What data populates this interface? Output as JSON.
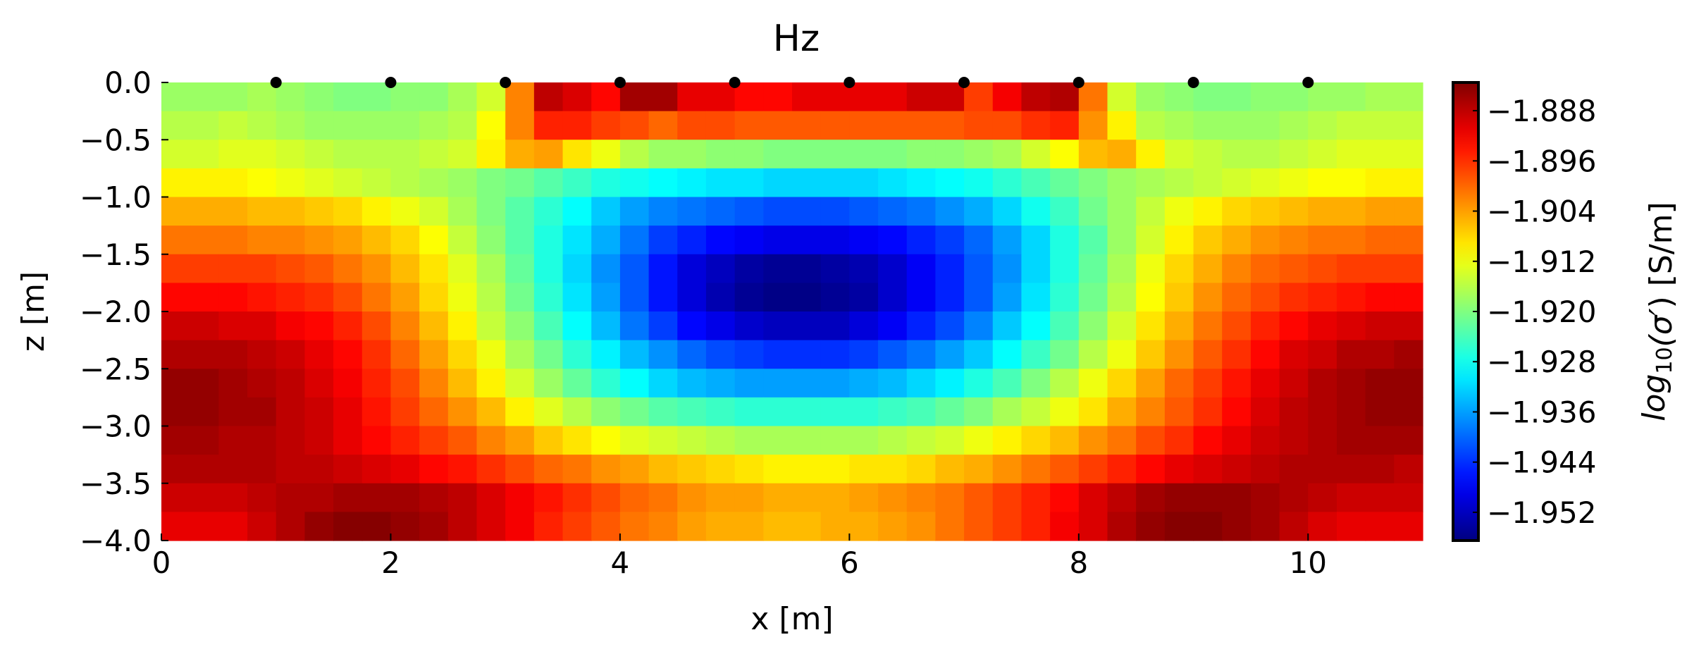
{
  "chart_data": {
    "type": "heatmap",
    "title": "Hz",
    "xlabel": "x [m]",
    "ylabel": "z [m]",
    "xlim": [
      0,
      11
    ],
    "ylim": [
      -4,
      0
    ],
    "x_ticks": [
      0,
      2,
      4,
      6,
      8,
      10
    ],
    "y_ticks": [
      0.0,
      -0.5,
      -1.0,
      -1.5,
      -2.0,
      -2.5,
      -3.0,
      -3.5,
      -4.0
    ],
    "x_tick_labels": [
      "0",
      "2",
      "4",
      "6",
      "8",
      "10"
    ],
    "y_tick_labels": [
      "0.0",
      "−0.5",
      "−1.0",
      "−1.5",
      "−2.0",
      "−2.5",
      "−3.0",
      "−3.5",
      "−4.0"
    ],
    "grid": false,
    "colormap": "jet",
    "colorbar": {
      "label": "log10(σ') [S/m]",
      "min": -1.9565,
      "max": -1.8835,
      "ticks": [
        -1.888,
        -1.896,
        -1.904,
        -1.912,
        -1.92,
        -1.928,
        -1.936,
        -1.944,
        -1.952
      ],
      "tick_labels": [
        "−1.888",
        "−1.896",
        "−1.904",
        "−1.912",
        "−1.920",
        "−1.928",
        "−1.936",
        "−1.944",
        "−1.952"
      ]
    },
    "cell_size": [
      0.25,
      0.25
    ],
    "z_top_cells": [
      0,
      -0.25,
      -0.5,
      -0.75,
      -1.0,
      -1.25,
      -1.5,
      -1.75,
      -2.0,
      -2.25,
      -2.5,
      -2.75,
      -3.0,
      -3.25,
      -3.5,
      -3.75
    ],
    "values": [
      [
        -1.918,
        -1.918,
        -1.918,
        -1.917,
        -1.918,
        -1.919,
        -1.92,
        -1.92,
        -1.919,
        -1.919,
        -1.917,
        -1.914,
        -1.902,
        -1.888,
        -1.89,
        -1.893,
        -1.886,
        -1.886,
        -1.891,
        -1.891,
        -1.893,
        -1.893,
        -1.891,
        -1.891,
        -1.891,
        -1.891,
        -1.889,
        -1.889,
        -1.897,
        -1.892,
        -1.888,
        -1.887,
        -1.901,
        -1.914,
        -1.918,
        -1.919,
        -1.92,
        -1.92,
        -1.919,
        -1.919,
        -1.918,
        -1.918,
        -1.917,
        -1.917
      ],
      [
        -1.916,
        -1.916,
        -1.915,
        -1.916,
        -1.917,
        -1.918,
        -1.918,
        -1.918,
        -1.918,
        -1.917,
        -1.916,
        -1.911,
        -1.902,
        -1.895,
        -1.895,
        -1.897,
        -1.898,
        -1.9,
        -1.898,
        -1.898,
        -1.899,
        -1.899,
        -1.899,
        -1.899,
        -1.899,
        -1.899,
        -1.899,
        -1.899,
        -1.898,
        -1.898,
        -1.896,
        -1.895,
        -1.903,
        -1.91,
        -1.916,
        -1.917,
        -1.918,
        -1.918,
        -1.918,
        -1.917,
        -1.916,
        -1.915,
        -1.915,
        -1.915
      ],
      [
        -1.914,
        -1.914,
        -1.913,
        -1.913,
        -1.914,
        -1.915,
        -1.916,
        -1.916,
        -1.916,
        -1.915,
        -1.914,
        -1.91,
        -1.905,
        -1.904,
        -1.909,
        -1.912,
        -1.916,
        -1.918,
        -1.918,
        -1.919,
        -1.919,
        -1.92,
        -1.92,
        -1.92,
        -1.92,
        -1.92,
        -1.919,
        -1.919,
        -1.918,
        -1.917,
        -1.914,
        -1.911,
        -1.906,
        -1.905,
        -1.91,
        -1.914,
        -1.915,
        -1.916,
        -1.916,
        -1.915,
        -1.914,
        -1.913,
        -1.913,
        -1.913
      ],
      [
        -1.91,
        -1.91,
        -1.91,
        -1.911,
        -1.912,
        -1.913,
        -1.914,
        -1.915,
        -1.916,
        -1.917,
        -1.918,
        -1.92,
        -1.921,
        -1.923,
        -1.925,
        -1.927,
        -1.928,
        -1.929,
        -1.93,
        -1.931,
        -1.931,
        -1.932,
        -1.932,
        -1.932,
        -1.932,
        -1.931,
        -1.93,
        -1.929,
        -1.928,
        -1.926,
        -1.924,
        -1.922,
        -1.92,
        -1.918,
        -1.917,
        -1.916,
        -1.915,
        -1.914,
        -1.913,
        -1.912,
        -1.911,
        -1.911,
        -1.91,
        -1.91
      ],
      [
        -1.905,
        -1.905,
        -1.905,
        -1.906,
        -1.906,
        -1.907,
        -1.908,
        -1.91,
        -1.912,
        -1.914,
        -1.917,
        -1.92,
        -1.923,
        -1.926,
        -1.929,
        -1.933,
        -1.936,
        -1.938,
        -1.939,
        -1.94,
        -1.941,
        -1.942,
        -1.942,
        -1.942,
        -1.941,
        -1.94,
        -1.939,
        -1.937,
        -1.935,
        -1.932,
        -1.928,
        -1.925,
        -1.921,
        -1.918,
        -1.915,
        -1.912,
        -1.91,
        -1.908,
        -1.907,
        -1.906,
        -1.905,
        -1.905,
        -1.904,
        -1.904
      ],
      [
        -1.901,
        -1.901,
        -1.901,
        -1.902,
        -1.902,
        -1.903,
        -1.904,
        -1.906,
        -1.908,
        -1.911,
        -1.915,
        -1.919,
        -1.923,
        -1.927,
        -1.931,
        -1.935,
        -1.939,
        -1.943,
        -1.945,
        -1.947,
        -1.948,
        -1.949,
        -1.949,
        -1.949,
        -1.948,
        -1.947,
        -1.945,
        -1.943,
        -1.94,
        -1.936,
        -1.932,
        -1.927,
        -1.923,
        -1.918,
        -1.914,
        -1.91,
        -1.907,
        -1.905,
        -1.903,
        -1.902,
        -1.901,
        -1.901,
        -1.9,
        -1.9
      ],
      [
        -1.897,
        -1.897,
        -1.897,
        -1.897,
        -1.898,
        -1.899,
        -1.901,
        -1.903,
        -1.906,
        -1.909,
        -1.913,
        -1.917,
        -1.922,
        -1.927,
        -1.932,
        -1.937,
        -1.941,
        -1.946,
        -1.95,
        -1.952,
        -1.954,
        -1.955,
        -1.955,
        -1.954,
        -1.953,
        -1.951,
        -1.948,
        -1.945,
        -1.941,
        -1.937,
        -1.932,
        -1.927,
        -1.922,
        -1.917,
        -1.912,
        -1.908,
        -1.905,
        -1.902,
        -1.9,
        -1.899,
        -1.898,
        -1.897,
        -1.897,
        -1.897
      ],
      [
        -1.893,
        -1.893,
        -1.893,
        -1.894,
        -1.895,
        -1.896,
        -1.898,
        -1.901,
        -1.904,
        -1.908,
        -1.912,
        -1.916,
        -1.921,
        -1.926,
        -1.931,
        -1.936,
        -1.941,
        -1.946,
        -1.95,
        -1.953,
        -1.955,
        -1.956,
        -1.956,
        -1.955,
        -1.954,
        -1.951,
        -1.948,
        -1.945,
        -1.941,
        -1.936,
        -1.931,
        -1.926,
        -1.921,
        -1.916,
        -1.911,
        -1.907,
        -1.903,
        -1.9,
        -1.898,
        -1.896,
        -1.895,
        -1.894,
        -1.893,
        -1.893
      ],
      [
        -1.889,
        -1.889,
        -1.89,
        -1.89,
        -1.892,
        -1.893,
        -1.895,
        -1.898,
        -1.902,
        -1.906,
        -1.91,
        -1.915,
        -1.919,
        -1.924,
        -1.929,
        -1.934,
        -1.939,
        -1.943,
        -1.947,
        -1.949,
        -1.951,
        -1.952,
        -1.952,
        -1.952,
        -1.95,
        -1.948,
        -1.945,
        -1.942,
        -1.938,
        -1.933,
        -1.929,
        -1.924,
        -1.919,
        -1.914,
        -1.909,
        -1.905,
        -1.901,
        -1.898,
        -1.895,
        -1.893,
        -1.891,
        -1.89,
        -1.889,
        -1.889
      ],
      [
        -1.887,
        -1.887,
        -1.887,
        -1.888,
        -1.889,
        -1.891,
        -1.893,
        -1.896,
        -1.9,
        -1.904,
        -1.908,
        -1.912,
        -1.917,
        -1.921,
        -1.926,
        -1.93,
        -1.934,
        -1.937,
        -1.94,
        -1.942,
        -1.943,
        -1.944,
        -1.944,
        -1.944,
        -1.943,
        -1.941,
        -1.939,
        -1.936,
        -1.933,
        -1.929,
        -1.925,
        -1.921,
        -1.916,
        -1.912,
        -1.907,
        -1.903,
        -1.899,
        -1.896,
        -1.893,
        -1.89,
        -1.889,
        -1.887,
        -1.887,
        -1.886
      ],
      [
        -1.885,
        -1.885,
        -1.886,
        -1.887,
        -1.888,
        -1.89,
        -1.892,
        -1.895,
        -1.898,
        -1.902,
        -1.906,
        -1.91,
        -1.914,
        -1.918,
        -1.922,
        -1.926,
        -1.929,
        -1.932,
        -1.934,
        -1.935,
        -1.936,
        -1.936,
        -1.936,
        -1.936,
        -1.935,
        -1.934,
        -1.932,
        -1.93,
        -1.927,
        -1.924,
        -1.92,
        -1.916,
        -1.912,
        -1.908,
        -1.904,
        -1.9,
        -1.897,
        -1.894,
        -1.891,
        -1.889,
        -1.887,
        -1.886,
        -1.885,
        -1.885
      ],
      [
        -1.885,
        -1.885,
        -1.886,
        -1.886,
        -1.888,
        -1.889,
        -1.891,
        -1.894,
        -1.897,
        -1.9,
        -1.903,
        -1.906,
        -1.91,
        -1.913,
        -1.916,
        -1.919,
        -1.921,
        -1.923,
        -1.924,
        -1.925,
        -1.926,
        -1.926,
        -1.926,
        -1.926,
        -1.926,
        -1.925,
        -1.924,
        -1.922,
        -1.92,
        -1.917,
        -1.915,
        -1.912,
        -1.909,
        -1.905,
        -1.902,
        -1.899,
        -1.896,
        -1.893,
        -1.89,
        -1.888,
        -1.887,
        -1.886,
        -1.885,
        -1.885
      ],
      [
        -1.886,
        -1.886,
        -1.887,
        -1.887,
        -1.888,
        -1.889,
        -1.891,
        -1.893,
        -1.895,
        -1.897,
        -1.899,
        -1.902,
        -1.904,
        -1.907,
        -1.909,
        -1.911,
        -1.913,
        -1.914,
        -1.915,
        -1.916,
        -1.917,
        -1.917,
        -1.917,
        -1.917,
        -1.917,
        -1.916,
        -1.915,
        -1.914,
        -1.912,
        -1.91,
        -1.908,
        -1.906,
        -1.903,
        -1.901,
        -1.898,
        -1.896,
        -1.893,
        -1.891,
        -1.889,
        -1.888,
        -1.887,
        -1.886,
        -1.886,
        -1.886
      ],
      [
        -1.887,
        -1.887,
        -1.887,
        -1.887,
        -1.888,
        -1.888,
        -1.889,
        -1.89,
        -1.891,
        -1.893,
        -1.894,
        -1.896,
        -1.898,
        -1.9,
        -1.901,
        -1.903,
        -1.904,
        -1.906,
        -1.907,
        -1.908,
        -1.909,
        -1.91,
        -1.91,
        -1.91,
        -1.909,
        -1.909,
        -1.908,
        -1.906,
        -1.905,
        -1.903,
        -1.901,
        -1.899,
        -1.897,
        -1.895,
        -1.893,
        -1.891,
        -1.89,
        -1.889,
        -1.888,
        -1.887,
        -1.887,
        -1.887,
        -1.887,
        -1.888
      ],
      [
        -1.889,
        -1.889,
        -1.889,
        -1.888,
        -1.887,
        -1.887,
        -1.886,
        -1.886,
        -1.886,
        -1.887,
        -1.888,
        -1.89,
        -1.892,
        -1.894,
        -1.896,
        -1.898,
        -1.9,
        -1.901,
        -1.903,
        -1.904,
        -1.904,
        -1.905,
        -1.905,
        -1.905,
        -1.904,
        -1.903,
        -1.902,
        -1.901,
        -1.899,
        -1.897,
        -1.895,
        -1.893,
        -1.89,
        -1.888,
        -1.886,
        -1.885,
        -1.885,
        -1.885,
        -1.886,
        -1.887,
        -1.888,
        -1.889,
        -1.889,
        -1.889
      ],
      [
        -1.891,
        -1.891,
        -1.891,
        -1.889,
        -1.887,
        -1.885,
        -1.884,
        -1.884,
        -1.885,
        -1.886,
        -1.888,
        -1.89,
        -1.892,
        -1.895,
        -1.897,
        -1.899,
        -1.901,
        -1.902,
        -1.904,
        -1.905,
        -1.905,
        -1.906,
        -1.906,
        -1.905,
        -1.905,
        -1.904,
        -1.903,
        -1.901,
        -1.899,
        -1.897,
        -1.895,
        -1.892,
        -1.89,
        -1.887,
        -1.885,
        -1.884,
        -1.884,
        -1.885,
        -1.886,
        -1.888,
        -1.89,
        -1.891,
        -1.891,
        -1.891
      ]
    ],
    "receivers": {
      "x": [
        1,
        2,
        3,
        4,
        5,
        6,
        7,
        8,
        9,
        10
      ],
      "z": [
        0,
        0,
        0,
        0,
        0,
        0,
        0,
        0,
        0,
        0
      ]
    }
  }
}
